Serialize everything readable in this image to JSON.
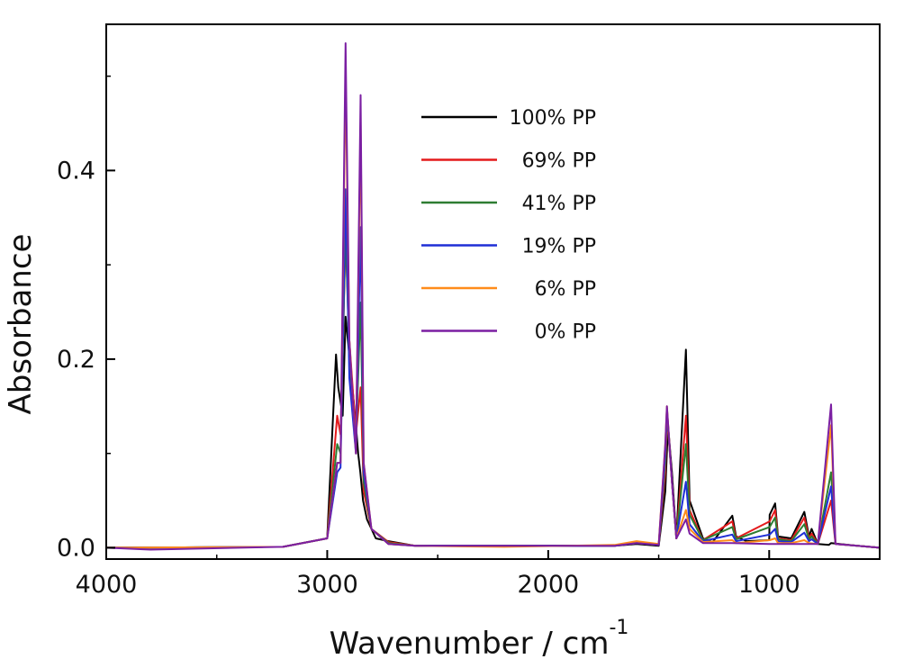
{
  "chart_data": {
    "type": "line",
    "title": "",
    "xlabel": "Wavenumber / cm",
    "xlabel_superscript": "-1",
    "ylabel": "Absorbance",
    "xlim": [
      4000,
      500
    ],
    "ylim": [
      -0.012,
      0.555
    ],
    "x_reversed": true,
    "grid": false,
    "legend_position": "top-center",
    "x_ticks": [
      {
        "value": 4000,
        "label": "4000"
      },
      {
        "value": 3000,
        "label": "3000"
      },
      {
        "value": 2000,
        "label": "2000"
      },
      {
        "value": 1000,
        "label": "1000"
      }
    ],
    "y_ticks": [
      {
        "value": 0.0,
        "label": "0.0"
      },
      {
        "value": 0.2,
        "label": "0.2"
      },
      {
        "value": 0.4,
        "label": "0.4"
      }
    ],
    "series": [
      {
        "name": "100% PP",
        "color": "#000000",
        "points": [
          [
            4000,
            0.0
          ],
          [
            3200,
            0.001
          ],
          [
            3000,
            0.01
          ],
          [
            2960,
            0.205
          ],
          [
            2950,
            0.17
          ],
          [
            2930,
            0.14
          ],
          [
            2917,
            0.245
          ],
          [
            2890,
            0.18
          ],
          [
            2870,
            0.13
          ],
          [
            2860,
            0.1
          ],
          [
            2850,
            0.08
          ],
          [
            2838,
            0.05
          ],
          [
            2820,
            0.03
          ],
          [
            2780,
            0.01
          ],
          [
            2723,
            0.007
          ],
          [
            2600,
            0.002
          ],
          [
            1700,
            0.002
          ],
          [
            1600,
            0.004
          ],
          [
            1500,
            0.002
          ],
          [
            1470,
            0.06
          ],
          [
            1458,
            0.13
          ],
          [
            1440,
            0.08
          ],
          [
            1420,
            0.01
          ],
          [
            1377,
            0.21
          ],
          [
            1360,
            0.05
          ],
          [
            1300,
            0.01
          ],
          [
            1256,
            0.006
          ],
          [
            1167,
            0.034
          ],
          [
            1150,
            0.012
          ],
          [
            1103,
            0.007
          ],
          [
            1000,
            0.008
          ],
          [
            998,
            0.035
          ],
          [
            973,
            0.047
          ],
          [
            960,
            0.012
          ],
          [
            900,
            0.01
          ],
          [
            841,
            0.038
          ],
          [
            820,
            0.012
          ],
          [
            808,
            0.02
          ],
          [
            780,
            0.004
          ],
          [
            730,
            0.003
          ],
          [
            720,
            0.005
          ],
          [
            600,
            0.002
          ],
          [
            500,
            0.0
          ]
        ]
      },
      {
        "name": "69% PP",
        "color": "#e41a1c",
        "points": [
          [
            4000,
            0.0
          ],
          [
            3200,
            0.001
          ],
          [
            3000,
            0.01
          ],
          [
            2955,
            0.14
          ],
          [
            2940,
            0.12
          ],
          [
            2917,
            0.33
          ],
          [
            2900,
            0.22
          ],
          [
            2870,
            0.12
          ],
          [
            2849,
            0.17
          ],
          [
            2835,
            0.06
          ],
          [
            2800,
            0.02
          ],
          [
            2723,
            0.006
          ],
          [
            2600,
            0.002
          ],
          [
            1700,
            0.002
          ],
          [
            1600,
            0.005
          ],
          [
            1500,
            0.003
          ],
          [
            1470,
            0.08
          ],
          [
            1462,
            0.14
          ],
          [
            1440,
            0.07
          ],
          [
            1420,
            0.01
          ],
          [
            1377,
            0.14
          ],
          [
            1360,
            0.04
          ],
          [
            1300,
            0.008
          ],
          [
            1167,
            0.028
          ],
          [
            1150,
            0.01
          ],
          [
            998,
            0.028
          ],
          [
            973,
            0.04
          ],
          [
            960,
            0.01
          ],
          [
            900,
            0.008
          ],
          [
            841,
            0.032
          ],
          [
            820,
            0.01
          ],
          [
            808,
            0.015
          ],
          [
            780,
            0.004
          ],
          [
            720,
            0.05
          ],
          [
            700,
            0.004
          ],
          [
            600,
            0.002
          ],
          [
            500,
            0.0
          ]
        ]
      },
      {
        "name": "41% PP",
        "color": "#2e7d32",
        "points": [
          [
            4000,
            0.0
          ],
          [
            3200,
            0.001
          ],
          [
            3000,
            0.01
          ],
          [
            2955,
            0.11
          ],
          [
            2940,
            0.1
          ],
          [
            2917,
            0.34
          ],
          [
            2900,
            0.2
          ],
          [
            2870,
            0.11
          ],
          [
            2849,
            0.26
          ],
          [
            2835,
            0.07
          ],
          [
            2800,
            0.02
          ],
          [
            2723,
            0.005
          ],
          [
            2600,
            0.002
          ],
          [
            1700,
            0.002
          ],
          [
            1600,
            0.005
          ],
          [
            1500,
            0.003
          ],
          [
            1470,
            0.09
          ],
          [
            1463,
            0.145
          ],
          [
            1440,
            0.07
          ],
          [
            1420,
            0.01
          ],
          [
            1377,
            0.11
          ],
          [
            1360,
            0.035
          ],
          [
            1300,
            0.008
          ],
          [
            1167,
            0.022
          ],
          [
            1150,
            0.009
          ],
          [
            998,
            0.022
          ],
          [
            973,
            0.032
          ],
          [
            960,
            0.009
          ],
          [
            900,
            0.007
          ],
          [
            841,
            0.025
          ],
          [
            820,
            0.009
          ],
          [
            808,
            0.012
          ],
          [
            780,
            0.004
          ],
          [
            720,
            0.08
          ],
          [
            700,
            0.004
          ],
          [
            600,
            0.002
          ],
          [
            500,
            0.0
          ]
        ]
      },
      {
        "name": "19% PP",
        "color": "#1f2fd6",
        "points": [
          [
            4000,
            0.0
          ],
          [
            3200,
            0.001
          ],
          [
            3000,
            0.01
          ],
          [
            2955,
            0.08
          ],
          [
            2940,
            0.085
          ],
          [
            2917,
            0.38
          ],
          [
            2900,
            0.18
          ],
          [
            2870,
            0.1
          ],
          [
            2849,
            0.34
          ],
          [
            2835,
            0.08
          ],
          [
            2800,
            0.02
          ],
          [
            2723,
            0.004
          ],
          [
            2600,
            0.002
          ],
          [
            1700,
            0.002
          ],
          [
            1600,
            0.005
          ],
          [
            1500,
            0.003
          ],
          [
            1470,
            0.1
          ],
          [
            1463,
            0.148
          ],
          [
            1440,
            0.07
          ],
          [
            1420,
            0.01
          ],
          [
            1377,
            0.07
          ],
          [
            1360,
            0.025
          ],
          [
            1300,
            0.007
          ],
          [
            1167,
            0.014
          ],
          [
            1150,
            0.007
          ],
          [
            998,
            0.014
          ],
          [
            973,
            0.02
          ],
          [
            960,
            0.007
          ],
          [
            900,
            0.006
          ],
          [
            841,
            0.016
          ],
          [
            820,
            0.007
          ],
          [
            808,
            0.009
          ],
          [
            780,
            0.004
          ],
          [
            720,
            0.065
          ],
          [
            700,
            0.004
          ],
          [
            600,
            0.002
          ],
          [
            500,
            0.0
          ]
        ]
      },
      {
        "name": "6% PP",
        "color": "#ff8c1a",
        "points": [
          [
            4000,
            0.0
          ],
          [
            3200,
            0.001
          ],
          [
            3000,
            0.01
          ],
          [
            2955,
            0.09
          ],
          [
            2940,
            0.09
          ],
          [
            2917,
            0.5
          ],
          [
            2900,
            0.22
          ],
          [
            2870,
            0.1
          ],
          [
            2849,
            0.45
          ],
          [
            2835,
            0.09
          ],
          [
            2800,
            0.02
          ],
          [
            2723,
            0.004
          ],
          [
            2600,
            0.002
          ],
          [
            2200,
            0.001
          ],
          [
            1700,
            0.003
          ],
          [
            1600,
            0.007
          ],
          [
            1500,
            0.004
          ],
          [
            1470,
            0.11
          ],
          [
            1463,
            0.15
          ],
          [
            1440,
            0.07
          ],
          [
            1420,
            0.01
          ],
          [
            1377,
            0.04
          ],
          [
            1360,
            0.02
          ],
          [
            1300,
            0.006
          ],
          [
            1167,
            0.008
          ],
          [
            1150,
            0.005
          ],
          [
            998,
            0.008
          ],
          [
            973,
            0.01
          ],
          [
            960,
            0.005
          ],
          [
            900,
            0.005
          ],
          [
            841,
            0.008
          ],
          [
            820,
            0.005
          ],
          [
            780,
            0.004
          ],
          [
            720,
            0.13
          ],
          [
            700,
            0.004
          ],
          [
            600,
            0.002
          ],
          [
            500,
            0.0
          ]
        ]
      },
      {
        "name": "0% PP",
        "color": "#7b1fa2",
        "points": [
          [
            4000,
            0.0
          ],
          [
            3800,
            -0.002
          ],
          [
            3200,
            0.001
          ],
          [
            3000,
            0.01
          ],
          [
            2955,
            0.09
          ],
          [
            2940,
            0.09
          ],
          [
            2917,
            0.535
          ],
          [
            2900,
            0.22
          ],
          [
            2870,
            0.1
          ],
          [
            2849,
            0.48
          ],
          [
            2835,
            0.09
          ],
          [
            2800,
            0.02
          ],
          [
            2723,
            0.004
          ],
          [
            2600,
            0.002
          ],
          [
            1700,
            0.002
          ],
          [
            1600,
            0.005
          ],
          [
            1500,
            0.003
          ],
          [
            1470,
            0.11
          ],
          [
            1463,
            0.15
          ],
          [
            1440,
            0.07
          ],
          [
            1420,
            0.01
          ],
          [
            1377,
            0.03
          ],
          [
            1360,
            0.015
          ],
          [
            1300,
            0.005
          ],
          [
            1167,
            0.005
          ],
          [
            1000,
            0.004
          ],
          [
            900,
            0.004
          ],
          [
            780,
            0.004
          ],
          [
            720,
            0.152
          ],
          [
            700,
            0.004
          ],
          [
            600,
            0.002
          ],
          [
            500,
            0.0
          ]
        ]
      }
    ]
  }
}
